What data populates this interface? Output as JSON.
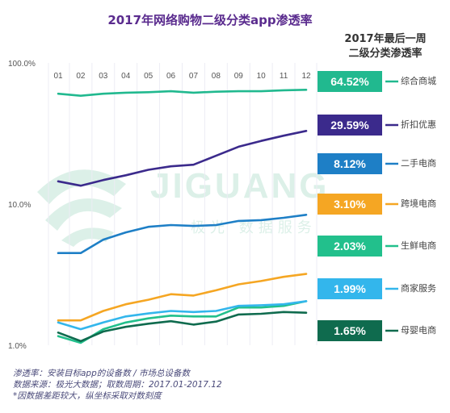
{
  "chart_data": {
    "type": "line",
    "title": "2017年网络购物二级分类app渗透率",
    "side_title_line1": "2017年最后一周",
    "side_title_line2": "二级分类渗透率",
    "x": [
      "01",
      "02",
      "03",
      "04",
      "05",
      "06",
      "07",
      "08",
      "09",
      "10",
      "11",
      "12"
    ],
    "y_scale": "log",
    "ylim": [
      1.0,
      100.0
    ],
    "y_ticks": [
      {
        "value": 100.0,
        "label": "100.0%"
      },
      {
        "value": 10.0,
        "label": "10.0%"
      },
      {
        "value": 1.0,
        "label": "1.0%"
      }
    ],
    "grid": "vertical",
    "series": [
      {
        "name": "综合商城",
        "color": "#21b98f",
        "last_week": "64.52%",
        "values": [
          60.5,
          58.5,
          60.5,
          61.5,
          62.0,
          63.0,
          61.5,
          62.5,
          63.0,
          63.0,
          64.0,
          64.5
        ]
      },
      {
        "name": "折扣优惠",
        "color": "#3b2a8c",
        "last_week": "29.59%",
        "values": [
          14.5,
          13.5,
          14.8,
          16.0,
          17.5,
          18.5,
          19.0,
          22.0,
          25.5,
          28.0,
          30.5,
          33.0
        ]
      },
      {
        "name": "二手电商",
        "color": "#1e7fc6",
        "last_week": "8.12%",
        "values": [
          4.5,
          4.5,
          5.6,
          6.3,
          6.9,
          7.1,
          7.0,
          7.1,
          7.6,
          7.7,
          8.0,
          8.4
        ]
      },
      {
        "name": "跨境电商",
        "color": "#f5a623",
        "last_week": "3.10%",
        "values": [
          1.5,
          1.5,
          1.75,
          1.95,
          2.1,
          2.3,
          2.25,
          2.45,
          2.7,
          2.85,
          3.05,
          3.2
        ]
      },
      {
        "name": "生鲜电商",
        "color": "#22c08c",
        "last_week": "2.03%",
        "values": [
          1.16,
          1.04,
          1.3,
          1.45,
          1.55,
          1.62,
          1.6,
          1.6,
          1.85,
          1.85,
          1.9,
          2.05
        ]
      },
      {
        "name": "商家服务",
        "color": "#33b6ec",
        "last_week": "1.99%",
        "values": [
          1.45,
          1.3,
          1.45,
          1.6,
          1.68,
          1.75,
          1.72,
          1.75,
          1.9,
          1.92,
          1.95,
          2.05
        ]
      },
      {
        "name": "母婴电商",
        "color": "#0f6b4e",
        "last_week": "1.65%",
        "values": [
          1.23,
          1.07,
          1.25,
          1.35,
          1.42,
          1.48,
          1.4,
          1.47,
          1.65,
          1.67,
          1.72,
          1.7
        ]
      }
    ]
  },
  "watermark": {
    "brand": "JIGUANG",
    "sub": "极光 数据服务"
  },
  "footnotes": [
    "渗透率：安装目标app的设备数 / 市场总设备数",
    "数据来源：极光大数据；取数周期：2017.01-2017.12",
    "*因数据差距较大，纵坐标采取对数刻度"
  ]
}
